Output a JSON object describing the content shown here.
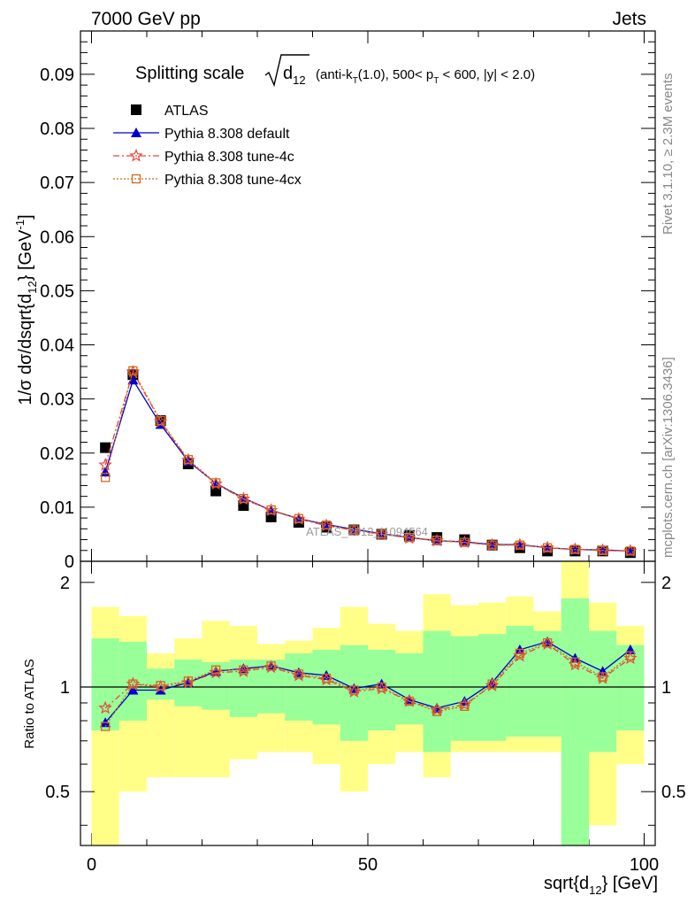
{
  "header": {
    "left": "7000 GeV pp",
    "right": "Jets"
  },
  "side_labels": {
    "rivet": "Rivet 3.1.10, ≥ 2.3M events",
    "mcplots": "mcplots.cern.ch [arXiv:1306.3436]"
  },
  "watermark": "ATLAS_2012_I1094564",
  "title": {
    "prefix": "Splitting scale",
    "d": "d",
    "d_sub": "12",
    "sel1": "(anti-k",
    "sel1_sub": "T",
    "sel2": "(1.0), 500< p",
    "sel2_sub": "T",
    "sel3": " < 600, |y| < 2.0)"
  },
  "ylabel_main": {
    "a": "1/σ dσ/dsqrt{d",
    "a_sub": "12",
    "b": "} [GeV",
    "b_sup": "-1",
    "c": "]"
  },
  "ylabel_ratio": "Ratio to ATLAS",
  "xlabel": {
    "a": "sqrt{d",
    "a_sub": "12",
    "b": "} [GeV]"
  },
  "legend": [
    {
      "label": "ATLAS",
      "marker": "square",
      "color": "#000000"
    },
    {
      "label": "Pythia 8.308 default",
      "marker": "triangle",
      "color": "#0000cc"
    },
    {
      "label": "Pythia 8.308 tune-4c",
      "marker": "star",
      "color": "#e8473f"
    },
    {
      "label": "Pythia 8.308 tune-4cx",
      "marker": "opensquare",
      "color": "#d2691e"
    }
  ],
  "chart_data": {
    "type": "scatter",
    "x": [
      2.5,
      7.5,
      12.5,
      17.5,
      22.5,
      27.5,
      32.5,
      37.5,
      42.5,
      47.5,
      52.5,
      57.5,
      62.5,
      67.5,
      72.5,
      77.5,
      82.5,
      87.5,
      92.5,
      97.5
    ],
    "xlim": [
      -2,
      102
    ],
    "ylim": [
      0,
      0.098
    ],
    "x_ticks": [
      0,
      50,
      100
    ],
    "y_ticks": [
      0.01,
      0.02,
      0.03,
      0.04,
      0.05,
      0.06,
      0.07,
      0.08,
      0.09
    ],
    "y_tick_labels": [
      "0.01",
      "0.02",
      "0.03",
      "0.04",
      "0.05",
      "0.06",
      "0.07",
      "0.08",
      "0.09"
    ],
    "y_zero_label": "0",
    "series": [
      {
        "name": "ATLAS",
        "values": [
          0.021,
          0.0345,
          0.026,
          0.018,
          0.013,
          0.0103,
          0.0082,
          0.0072,
          0.0063,
          0.0058,
          0.005,
          0.0048,
          0.0044,
          0.004,
          0.003,
          0.0025,
          0.0019,
          0.0019,
          0.0019,
          0.0016
        ]
      },
      {
        "name": "Pythia 8.308 default",
        "values": [
          0.0165,
          0.0335,
          0.0253,
          0.0185,
          0.0144,
          0.0117,
          0.0094,
          0.0079,
          0.0068,
          0.0059,
          0.0051,
          0.0044,
          0.0038,
          0.0036,
          0.0031,
          0.0031,
          0.0025,
          0.0022,
          0.0021,
          0.0019
        ]
      },
      {
        "name": "Pythia 8.308 tune-4c",
        "values": [
          0.0178,
          0.035,
          0.0258,
          0.0187,
          0.0143,
          0.0115,
          0.0094,
          0.0078,
          0.0066,
          0.0057,
          0.005,
          0.0043,
          0.0038,
          0.0035,
          0.003,
          0.003,
          0.0025,
          0.0022,
          0.002,
          0.0019
        ]
      },
      {
        "name": "Pythia 8.308 tune-4cx",
        "values": [
          0.0155,
          0.0352,
          0.026,
          0.0188,
          0.0145,
          0.0116,
          0.0095,
          0.0079,
          0.0067,
          0.0058,
          0.005,
          0.0044,
          0.0039,
          0.0035,
          0.003,
          0.003,
          0.0025,
          0.0022,
          0.002,
          0.0019
        ]
      }
    ],
    "ratio": {
      "ylabel": "Ratio to ATLAS",
      "ylim": [
        0.35,
        2.3
      ],
      "y_ticks": [
        0.5,
        1,
        2
      ],
      "y_tick_labels": [
        "0.5",
        "1",
        "2"
      ],
      "reference_line": 1,
      "band_outer": [
        [
          0.35,
          1.7
        ],
        [
          0.5,
          1.6
        ],
        [
          0.55,
          1.25
        ],
        [
          0.55,
          1.38
        ],
        [
          0.55,
          1.55
        ],
        [
          0.62,
          1.5
        ],
        [
          0.65,
          1.33
        ],
        [
          0.65,
          1.36
        ],
        [
          0.6,
          1.48
        ],
        [
          0.5,
          1.7
        ],
        [
          0.6,
          1.52
        ],
        [
          0.65,
          1.45
        ],
        [
          0.55,
          1.85
        ],
        [
          0.65,
          1.72
        ],
        [
          0.65,
          1.75
        ],
        [
          0.65,
          1.82
        ],
        [
          0.65,
          1.65
        ],
        [
          0.35,
          2.3
        ],
        [
          0.4,
          1.75
        ],
        [
          0.6,
          1.5
        ]
      ],
      "band_inner": [
        [
          0.75,
          1.38
        ],
        [
          0.8,
          1.35
        ],
        [
          0.92,
          1.13
        ],
        [
          0.88,
          1.2
        ],
        [
          0.86,
          1.18
        ],
        [
          0.82,
          1.2
        ],
        [
          0.84,
          1.2
        ],
        [
          0.8,
          1.25
        ],
        [
          0.78,
          1.28
        ],
        [
          0.7,
          1.32
        ],
        [
          0.75,
          1.28
        ],
        [
          0.78,
          1.25
        ],
        [
          0.65,
          1.45
        ],
        [
          0.7,
          1.4
        ],
        [
          0.7,
          1.42
        ],
        [
          0.72,
          1.5
        ],
        [
          0.72,
          1.45
        ],
        [
          0.35,
          1.8
        ],
        [
          0.65,
          1.45
        ],
        [
          0.75,
          1.32
        ]
      ],
      "series": [
        {
          "name": "Pythia 8.308 default",
          "values": [
            0.79,
            0.98,
            0.98,
            1.03,
            1.11,
            1.13,
            1.15,
            1.1,
            1.08,
            0.99,
            1.02,
            0.92,
            0.87,
            0.91,
            1.03,
            1.28,
            1.35,
            1.21,
            1.11,
            1.28
          ]
        },
        {
          "name": "Pythia 8.308 tune-4c",
          "values": [
            0.87,
            1.02,
            1.0,
            1.03,
            1.1,
            1.11,
            1.14,
            1.08,
            1.05,
            0.97,
            0.99,
            0.91,
            0.86,
            0.89,
            1.01,
            1.23,
            1.33,
            1.16,
            1.06,
            1.21
          ]
        },
        {
          "name": "Pythia 8.308 tune-4cx",
          "values": [
            0.77,
            1.02,
            1.01,
            1.04,
            1.12,
            1.12,
            1.15,
            1.09,
            1.06,
            0.98,
            1.0,
            0.91,
            0.85,
            0.88,
            1.02,
            1.25,
            1.34,
            1.18,
            1.07,
            1.23
          ]
        }
      ]
    }
  }
}
